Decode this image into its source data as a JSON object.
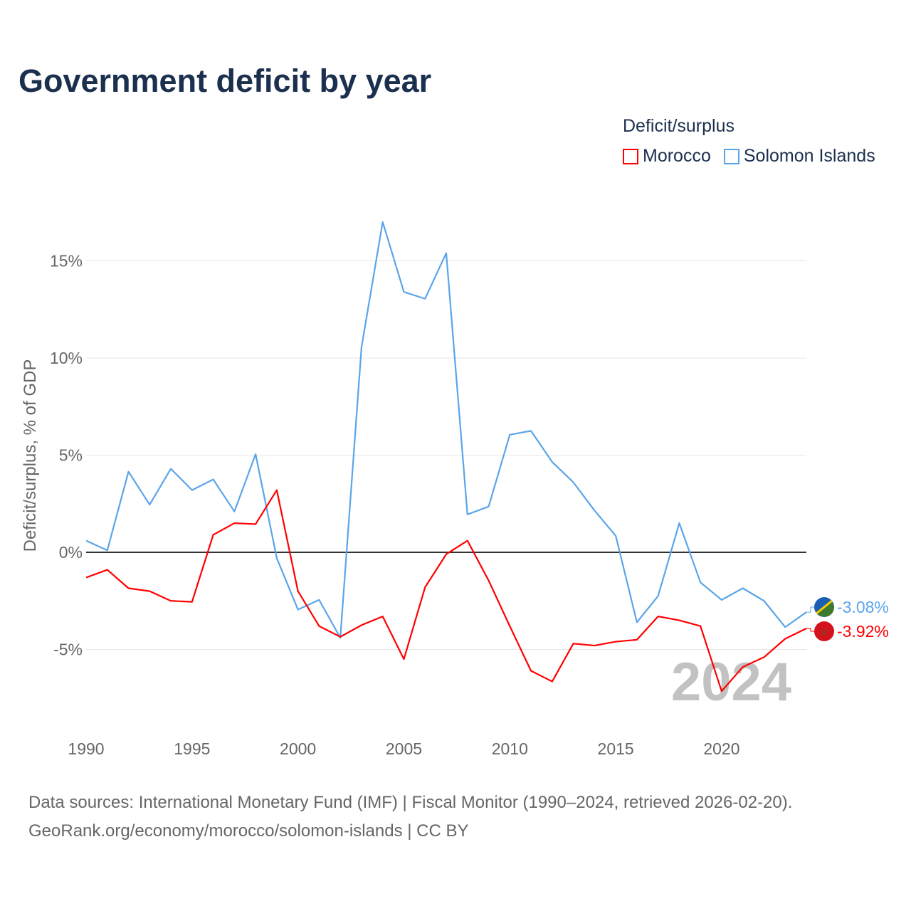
{
  "chart_data": {
    "type": "line",
    "title": "Government deficit by year",
    "ylabel": "Deficit/surplus, % of GDP",
    "xlabel": "",
    "legend_title": "Deficit/surplus",
    "legend_position": "top-right",
    "ylim": [
      -8.5,
      17.5
    ],
    "xlim": [
      1990,
      2024
    ],
    "grid": true,
    "yticks": [
      -5,
      0,
      5,
      10,
      15
    ],
    "ytick_labels": [
      "-5%",
      "0%",
      "5%",
      "10%",
      "15%"
    ],
    "xticks": [
      1990,
      1995,
      2000,
      2005,
      2010,
      2015,
      2020
    ],
    "xtick_labels": [
      "1990",
      "1995",
      "2000",
      "2005",
      "2010",
      "2015",
      "2020"
    ],
    "year_watermark": "2024",
    "x": [
      1990,
      1991,
      1992,
      1993,
      1994,
      1995,
      1996,
      1997,
      1998,
      1999,
      2000,
      2001,
      2002,
      2003,
      2004,
      2005,
      2006,
      2007,
      2008,
      2009,
      2010,
      2011,
      2012,
      2013,
      2014,
      2015,
      2016,
      2017,
      2018,
      2019,
      2020,
      2021,
      2022,
      2023,
      2024
    ],
    "series": [
      {
        "name": "Morocco",
        "color": "#ff0000",
        "end_label": "-3.92%",
        "values": [
          -1.3,
          -0.9,
          -1.85,
          -2.0,
          -2.5,
          -2.55,
          0.9,
          1.5,
          1.45,
          3.2,
          -2.0,
          -3.8,
          -4.35,
          -3.75,
          -3.3,
          -5.5,
          -1.8,
          -0.1,
          0.6,
          -1.45,
          -3.8,
          -6.1,
          -6.65,
          -4.7,
          -4.8,
          -4.6,
          -4.5,
          -3.3,
          -3.5,
          -3.8,
          -7.15,
          -5.9,
          -5.4,
          -4.45,
          -3.92
        ]
      },
      {
        "name": "Solomon Islands",
        "color": "#5aa5ea",
        "end_label": "-3.08%",
        "values": [
          0.6,
          0.1,
          4.15,
          2.45,
          4.3,
          3.2,
          3.75,
          2.1,
          5.05,
          -0.3,
          -2.95,
          -2.45,
          -4.4,
          10.55,
          17.0,
          13.4,
          13.05,
          15.4,
          1.95,
          2.35,
          6.05,
          6.25,
          4.65,
          3.6,
          2.15,
          0.85,
          -3.6,
          -2.25,
          1.5,
          -1.55,
          -2.45,
          -1.85,
          -2.5,
          -3.85,
          -3.08
        ]
      }
    ]
  },
  "footer": {
    "line1": "Data sources: International Monetary Fund (IMF) | Fiscal Monitor (1990–2024, retrieved 2026-02-20).",
    "line2": "GeoRank.org/economy/morocco/solomon-islands | CC BY"
  }
}
